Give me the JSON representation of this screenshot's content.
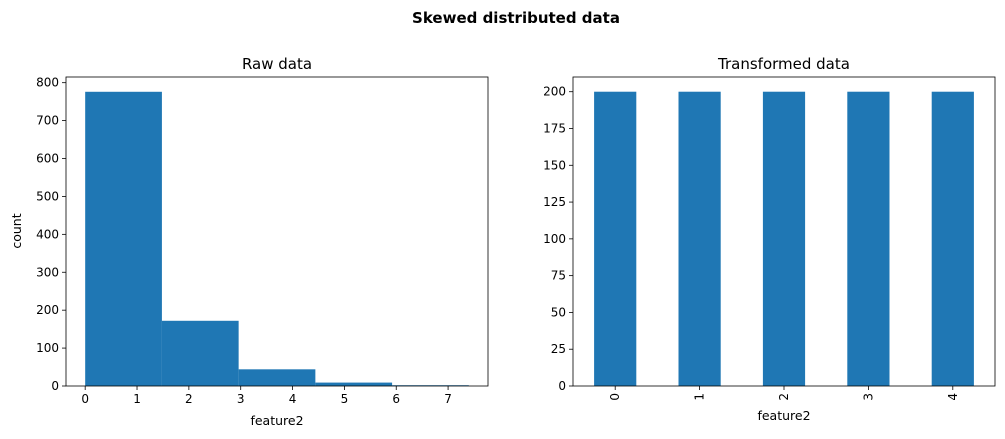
{
  "figure_title": "Skewed distributed data",
  "colors": {
    "bar": "#1f77b4",
    "axis": "#000000"
  },
  "chart_data": [
    {
      "type": "bar",
      "subtype": "histogram",
      "title": "Raw data",
      "xlabel": "feature2",
      "ylabel": "count",
      "bins": [
        {
          "x0": 0.0,
          "x1": 1.48,
          "count": 776
        },
        {
          "x0": 1.48,
          "x1": 2.96,
          "count": 172
        },
        {
          "x0": 2.96,
          "x1": 4.44,
          "count": 44
        },
        {
          "x0": 4.44,
          "x1": 5.92,
          "count": 9
        },
        {
          "x0": 5.92,
          "x1": 7.4,
          "count": 2
        }
      ],
      "xlim": [
        -0.37,
        7.77
      ],
      "ylim": [
        0,
        815
      ],
      "xticks": [
        0,
        1,
        2,
        3,
        4,
        5,
        6,
        7
      ],
      "yticks": [
        0,
        100,
        200,
        300,
        400,
        500,
        600,
        700,
        800
      ],
      "grid": false,
      "legend": "none"
    },
    {
      "type": "bar",
      "title": "Transformed data",
      "xlabel": "feature2",
      "ylabel": "",
      "categories": [
        "0",
        "1",
        "2",
        "3",
        "4"
      ],
      "values": [
        200,
        200,
        200,
        200,
        200
      ],
      "ylim": [
        0,
        210
      ],
      "yticks": [
        0,
        25,
        50,
        75,
        100,
        125,
        150,
        175,
        200
      ],
      "tick_rotation": 90,
      "grid": false,
      "legend": "none"
    }
  ]
}
